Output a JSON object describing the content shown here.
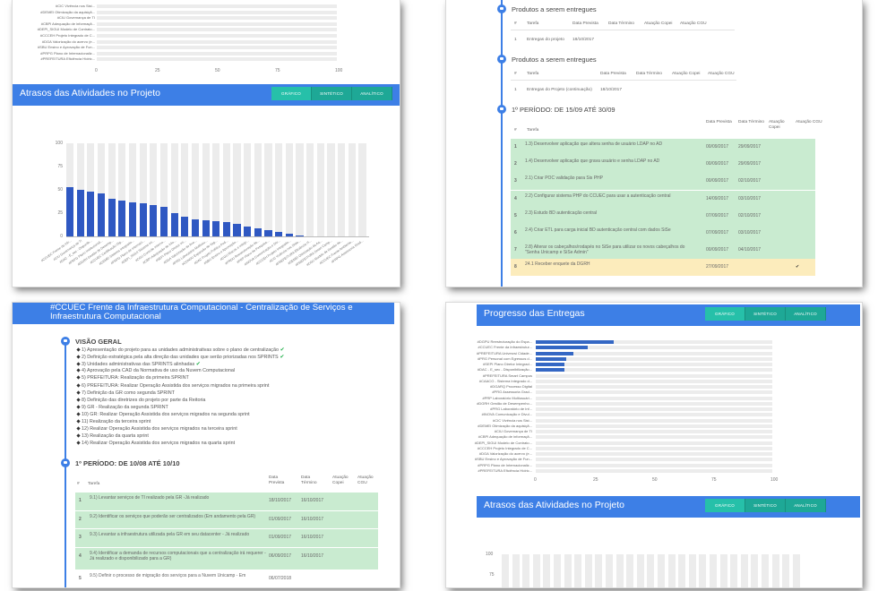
{
  "buttons": {
    "grafico": "Gráfico",
    "sintetico": "Sintético",
    "analitico": "Analítico"
  },
  "panel1": {
    "top_labels": [
      "#CIC Vivência nos Sist...",
      "#DEMEI Otimização da aquisiçã...",
      "#CIU Governança de TI",
      "#CBPI Adequação de informaçã...",
      "#DEPI_SIGUI Modelo de Contrato...",
      "#CCCEH Projeto Integrado de C...",
      "#DGA Valorização do acervo (e...",
      "#SBU Ensino e Aprovação de Fun...",
      "#PRPG Plano de Internacionaliz...",
      "#PREFEITURA Eficiência Hídric..."
    ],
    "top_ticks": [
      "0",
      "25",
      "50",
      "75",
      "100"
    ],
    "delay_title": "Atrasos das Atividades no Projeto",
    "delay_chart": {
      "type": "bar",
      "yticks": [
        "100",
        "75",
        "50",
        "25",
        "0"
      ],
      "ylim": [
        0,
        100
      ],
      "categories": [
        "#CCUEC Frente da Infr...",
        "#CIU Governança de TI",
        "#DAC - E_sec - Disponib...",
        "#PRPG Plano Institucional...",
        "#DGRH Gestão de Desemp...",
        "#CCUEC Certificação Dig...",
        "#CEMEI Sistema Integrado...",
        "#PRPG Plano de Internaci...",
        "#DEPI_SIGUI Sistema Int...",
        "#CGU Controle Interno...",
        "#CBPI Adequação de Info...",
        "#SEPI Plano Diretor Int...",
        "#DGA Valorização do Ace...",
        "#PRG Laboratório Multiusu...",
        "#CONSU Expansão de Vag...",
        "#DAC Projeto Político Ped...",
        "#SBU Ensino e Aprovação...",
        "#CGU Riscos e Integr...",
        "#PRDU Reestruturação da...",
        "#PRP Plano de Pesquisa...",
        "#INOVA Comunicação e Div...",
        "#CCCEH Projeto Integrado...",
        "#CIC Vivência nos Siste...",
        "#PREFEITURA Eficiência H...",
        "#DEMEI Otimização da Aq...",
        "#PREFEITURA Smart Camp...",
        "#CGU Modelo de Gestão de...",
        "#CCUEC Frente Ambiente...",
        "#PRPG Assessoria Grad..."
      ],
      "values": [
        53,
        50,
        48,
        46,
        40,
        38,
        37,
        36,
        34,
        32,
        25,
        21,
        18,
        17,
        16,
        15,
        13,
        11,
        9,
        7,
        5,
        3,
        1,
        0,
        0,
        0,
        0,
        0,
        0
      ]
    }
  },
  "panel2": {
    "section1_title": "Produtos a serem entregues",
    "section1_headers": [
      "#",
      "Tarefa",
      "Data Prevista",
      "Data Término",
      "Atuação Copei",
      "Atuação CGU"
    ],
    "section1_rows": [
      {
        "n": "1",
        "tarefa": "Entregas do projeto",
        "prev": "18/10/2017"
      }
    ],
    "section2_title": "Produtos a serem entregues",
    "section2_headers": [
      "#",
      "Tarefa",
      "Data Prevista",
      "Data Término",
      "Atuação Copei",
      "Atuação CGU"
    ],
    "section2_rows": [
      {
        "n": "1",
        "tarefa": "Entregas do Projeto (continuação)",
        "prev": "18/10/2017"
      }
    ],
    "period_title": "1º PERÍODO: DE 15/09 ATÉ 30/09",
    "period_headers": [
      "#",
      "Tarefa",
      "Data Prevista",
      "Data Término",
      "Atuação Copei",
      "Atuação CGU"
    ],
    "period_rows": [
      {
        "n": "1",
        "tarefa": "1.3) Desenvolver aplicação que altera senha de usuário LDAP no AD",
        "prev": "00/09/2017",
        "fim": "29/09/2017",
        "cls": "g"
      },
      {
        "n": "2",
        "tarefa": "1.4) Desenvolver aplicação que grava usuário e senha LDAP no AD",
        "prev": "00/09/2017",
        "fim": "29/09/2017",
        "cls": "g"
      },
      {
        "n": "3",
        "tarefa": "2.1) Criar POC validação para Sis PHP",
        "prev": "00/09/2017",
        "fim": "02/10/2017",
        "cls": "g"
      },
      {
        "n": "4",
        "tarefa": "2.2) Configurar sistema PHP do CCUEC para usar a autenticação central",
        "prev": "14/09/2017",
        "fim": "03/10/2017",
        "cls": "g"
      },
      {
        "n": "5",
        "tarefa": "2.3) Estudo BD autenticação central",
        "prev": "07/09/2017",
        "fim": "02/10/2017",
        "cls": "g"
      },
      {
        "n": "6",
        "tarefa": "2.4) Criar ETL para carga inicial BD autenticação central com dados SiSe",
        "prev": "07/09/2017",
        "fim": "03/10/2017",
        "cls": "g"
      },
      {
        "n": "7",
        "tarefa": "2.8) Alterar os cabeçalhos/rodapés no SiSe para utilizar os novos cabeçalhos do \"Senha Unicamp e SiSe Admin\"",
        "prev": "00/09/2017",
        "fim": "04/10/2017",
        "cls": "g"
      },
      {
        "n": "8",
        "tarefa": "24.1 Receber enquete da DGRH",
        "prev": "27/09/2017",
        "fim": "",
        "cls": "y",
        "cgu": "✔"
      }
    ]
  },
  "panel3": {
    "title": "#CCUEC Frente da Infraestrutura Computacional - Centralização de Serviços e Infraestrutura Computacional",
    "overview_title": "VISÃO GERAL",
    "overview_items": [
      {
        "text": "1) Apresentação do projeto para as unidades administrativas sobre o plano de centralização",
        "check": true
      },
      {
        "text": "2) Definição estratégica pela alta direção das unidades que serão priorizadas nos SPRINTS",
        "check": true
      },
      {
        "text": "3) Unidades administrativas das SPRINTS alinhadas",
        "check": true
      },
      {
        "text": "4) Aprovação pela CAD da Normativa de uso da Nuvem Computacional",
        "check": false
      },
      {
        "text": "5) PREFEITURA: Realização da primeira SPRINT",
        "check": false
      },
      {
        "text": "6) PREFEITURA: Realizar Operação Assistida dos serviços migrados na primeira sprint",
        "check": false
      },
      {
        "text": "7) Definição da GR como segunda SPRINT",
        "check": false
      },
      {
        "text": "8) Definição das diretrizes do projeto por parte da Reitoria",
        "check": false
      },
      {
        "text": "9) GR - Realização da segunda SPRINT",
        "check": false
      },
      {
        "text": "10) GR: Realizar Operação Assistida dos serviços migrados na segunda sprint",
        "check": false
      },
      {
        "text": "11) Realização da terceira sprint",
        "check": false
      },
      {
        "text": "12) Realizar Operação Assistida dos serviços migrados na terceira sprint",
        "check": false
      },
      {
        "text": "13) Realização da quarta sprint",
        "check": false
      },
      {
        "text": "14) Realizar Operação Assistida dos serviços migrados na quarta sprint",
        "check": false
      }
    ],
    "period_title": "1º PERÍODO: DE 10/08 ATÉ 10/10",
    "period_headers": [
      "#",
      "Tarefa",
      "Data Prevista",
      "Data Término",
      "Atuação Copei",
      "Atuação CGU"
    ],
    "period_rows": [
      {
        "n": "1",
        "tarefa": "9.1) Levantar serviços de TI realizado pela GR -Já realizado",
        "prev": "18/10/2017",
        "fim": "16/10/2017",
        "cls": "g"
      },
      {
        "n": "2",
        "tarefa": "9.2) Identificar os serviços que poderão ser centralizados (Em andamento pela GR)",
        "prev": "01/09/2017",
        "fim": "16/10/2017",
        "cls": "g"
      },
      {
        "n": "3",
        "tarefa": "9.3) Levantar a infraestrutura utilizada pela GR em seu datacenter - Já realizado",
        "prev": "01/09/2017",
        "fim": "16/10/2017",
        "cls": "g"
      },
      {
        "n": "4",
        "tarefa": "9.4) Identificar a demanda de recursos computacionais que a centralização irá requerer - Já realizado e disponibilizado para a GR)",
        "prev": "06/09/2017",
        "fim": "16/10/2017",
        "cls": "g"
      },
      {
        "n": "5",
        "tarefa": "9.5) Definir o processo de migração dos serviços para a Nuvem Unicamp - Em",
        "prev": "06/07/2018",
        "fim": "",
        "cls": "w"
      }
    ]
  },
  "panel4": {
    "progress_title": "Progresso das Entregas",
    "progress_chart": {
      "type": "bar",
      "categories": [
        "#DGPU Reestruturação do Espa...",
        "#CCUEC Frente da Infraestrutur...",
        "#PREFEITURA Univesrsi Cidade...",
        "#PRG Personal com Egressos d...",
        "#SEPI Plano Diretor Integrad...",
        "#DAC - E_sec - Disponibilização...",
        "#PREFEITURA Smart Campus",
        "#CAACO - Sistema Integrado d...",
        "#DGARQ Processo Digital",
        "#PRG Assessoria Grad...",
        "#PRP Laboratório Multiusuári...",
        "#DGRH Gestão de Desempenho...",
        "#PRG Laboratório de Inf...",
        "#INOVA Comunicação e Divul...",
        "#CIC Vivência nos Sist...",
        "#DEMEI Otimização da aquisiçã...",
        "#CIU Governança de TI",
        "#CBPI Adequação de informaçã...",
        "#DEPI_SIGUI Modelo de Contrato...",
        "#CCCEH Projeto Integrado de C...",
        "#DGA Valorização do acervo (e...",
        "#SBU Ensino e Aprovação de Fun...",
        "#PRPG Plano de Internacionaliz...",
        "#PREFEITURA Eficiência Hídric..."
      ],
      "values": [
        33,
        22,
        16,
        13,
        12,
        12,
        0,
        0,
        0,
        0,
        0,
        0,
        0,
        0,
        0,
        0,
        0,
        0,
        0,
        0,
        0,
        0,
        0,
        0
      ],
      "ticks": [
        "0",
        "25",
        "50",
        "75",
        "100"
      ],
      "xlim": [
        0,
        100
      ]
    },
    "delay_title": "Atrasos das Atividades no Projeto",
    "delay_yticks": [
      "100",
      "75"
    ]
  }
}
